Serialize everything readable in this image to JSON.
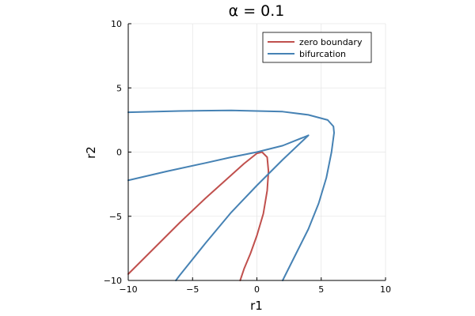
{
  "chart_data": {
    "type": "line",
    "title": "α = 0.1",
    "xlabel": "r1",
    "ylabel": "r2",
    "xlim": [
      -10,
      10
    ],
    "ylim": [
      -10,
      10
    ],
    "xticks": [
      -10,
      -5,
      0,
      5,
      10
    ],
    "yticks": [
      -10,
      -5,
      0,
      5,
      10
    ],
    "x_tick_labels": [
      "−10",
      "−5",
      "0",
      "5",
      "10"
    ],
    "y_tick_labels": [
      "−10",
      "−5",
      "0",
      "5",
      "10"
    ],
    "grid": true,
    "legend_position": "top-right",
    "series": [
      {
        "name": "zero boundary",
        "color": "#c0504d",
        "segments": [
          [
            [
              -10,
              -9.5
            ],
            [
              -8,
              -7.5
            ],
            [
              -6,
              -5.5
            ],
            [
              -4,
              -3.6
            ],
            [
              -2,
              -1.8
            ],
            [
              -1,
              -0.9
            ],
            [
              0,
              -0.1
            ],
            [
              0.4,
              0
            ],
            [
              0.8,
              -0.4
            ],
            [
              0.9,
              -1.5
            ],
            [
              0.8,
              -3
            ],
            [
              0.5,
              -4.8
            ],
            [
              0,
              -6.5
            ],
            [
              -0.5,
              -7.9
            ],
            [
              -1,
              -9.1
            ],
            [
              -1.3,
              -10
            ]
          ]
        ]
      },
      {
        "name": "bifurcation",
        "color": "#4682b4",
        "segments": [
          [
            [
              -10,
              3.1
            ],
            [
              -6,
              3.2
            ],
            [
              -2,
              3.25
            ],
            [
              2,
              3.15
            ],
            [
              4,
              2.9
            ],
            [
              5.5,
              2.5
            ],
            [
              5.95,
              2.0
            ],
            [
              6.0,
              1.5
            ],
            [
              5.8,
              0
            ],
            [
              5.4,
              -2
            ],
            [
              4.8,
              -4
            ],
            [
              4.0,
              -6
            ],
            [
              3.0,
              -8
            ],
            [
              2.0,
              -10
            ]
          ],
          [
            [
              -10,
              -2.2
            ],
            [
              -7,
              -1.5
            ],
            [
              -4,
              -0.85
            ],
            [
              -2,
              -0.4
            ],
            [
              0,
              0
            ],
            [
              2,
              0.5
            ],
            [
              4,
              1.3
            ]
          ],
          [
            [
              4,
              1.3
            ],
            [
              2,
              -0.6
            ],
            [
              0,
              -2.6
            ],
            [
              -2,
              -4.7
            ],
            [
              -4,
              -7.1
            ],
            [
              -6,
              -9.6
            ],
            [
              -6.3,
              -10
            ]
          ]
        ]
      }
    ]
  }
}
